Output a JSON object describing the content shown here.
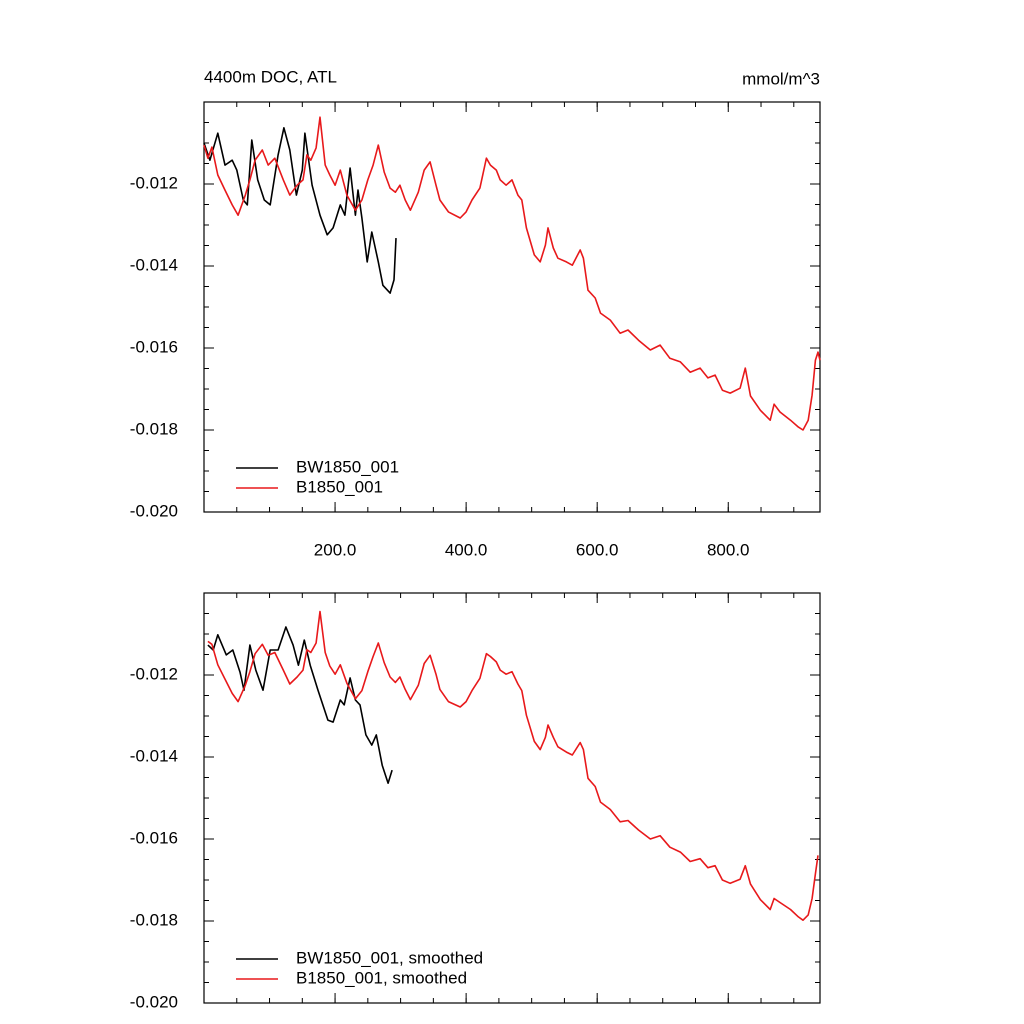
{
  "chart_data": [
    {
      "type": "line",
      "title": "4400m DOC, ATL",
      "units": "mmol/m^3",
      "xlim": [
        0,
        940
      ],
      "ylim": [
        -0.02,
        -0.01
      ],
      "xticks": [
        {
          "value": 200,
          "label": "200.0"
        },
        {
          "value": 400,
          "label": "400.0"
        },
        {
          "value": 600,
          "label": "600.0"
        },
        {
          "value": 800,
          "label": "800.0"
        }
      ],
      "yticks": [
        {
          "value": -0.02,
          "label": "-0.020"
        },
        -0.018,
        -0.016,
        -0.014,
        -0.012
      ],
      "legend": "lower left",
      "series": [
        {
          "name": "BW1850_001",
          "color": "#000000",
          "x": [
            0,
            9,
            21,
            32,
            43,
            50,
            60,
            66,
            73,
            82,
            92,
            101,
            113,
            122,
            131,
            141,
            150,
            154,
            165,
            177,
            188,
            197,
            208,
            215,
            223,
            231,
            235,
            241,
            249,
            256,
            266,
            273,
            284,
            290,
            293
          ],
          "values": [
            -0.011,
            -0.01142,
            -0.01076,
            -0.01154,
            -0.01142,
            -0.01166,
            -0.01239,
            -0.01251,
            -0.01093,
            -0.0119,
            -0.01239,
            -0.01251,
            -0.01129,
            -0.01063,
            -0.01117,
            -0.01227,
            -0.01166,
            -0.01076,
            -0.01203,
            -0.01276,
            -0.01324,
            -0.01307,
            -0.01251,
            -0.01276,
            -0.01161,
            -0.01276,
            -0.01215,
            -0.01283,
            -0.0139,
            -0.01317,
            -0.0139,
            -0.01447,
            -0.01466,
            -0.01434,
            -0.01332
          ]
        },
        {
          "name": "B1850_001",
          "color": "#e8191b",
          "x": [
            0,
            6,
            12,
            21,
            32,
            43,
            52,
            63,
            70,
            78,
            89,
            98,
            108,
            121,
            131,
            142,
            151,
            157,
            163,
            171,
            177,
            185,
            192,
            200,
            208,
            218,
            231,
            241,
            250,
            258,
            266,
            275,
            284,
            292,
            299,
            307,
            315,
            327,
            336,
            345,
            354,
            360,
            373,
            391,
            400,
            409,
            421,
            431,
            437,
            446,
            452,
            461,
            470,
            479,
            485,
            492,
            504,
            513,
            521,
            525,
            533,
            540,
            553,
            562,
            574,
            579,
            586,
            597,
            605,
            620,
            635,
            647,
            663,
            681,
            696,
            711,
            727,
            742,
            757,
            769,
            780,
            791,
            803,
            818,
            826,
            834,
            849,
            864,
            870,
            879,
            895,
            907,
            914,
            922,
            928,
            933,
            937,
            940
          ],
          "values": [
            -0.01105,
            -0.01137,
            -0.0111,
            -0.01178,
            -0.01215,
            -0.01251,
            -0.01276,
            -0.01227,
            -0.0119,
            -0.01142,
            -0.01117,
            -0.01154,
            -0.01137,
            -0.0119,
            -0.01227,
            -0.01203,
            -0.0119,
            -0.01129,
            -0.01142,
            -0.01112,
            -0.01037,
            -0.01154,
            -0.01178,
            -0.01203,
            -0.01166,
            -0.01227,
            -0.01264,
            -0.01239,
            -0.0119,
            -0.01154,
            -0.01105,
            -0.01171,
            -0.0121,
            -0.0122,
            -0.01203,
            -0.01239,
            -0.01264,
            -0.0122,
            -0.01166,
            -0.01146,
            -0.01203,
            -0.01239,
            -0.01268,
            -0.01283,
            -0.01268,
            -0.01239,
            -0.0121,
            -0.01137,
            -0.01154,
            -0.01166,
            -0.0119,
            -0.01203,
            -0.0119,
            -0.01227,
            -0.01239,
            -0.01307,
            -0.01373,
            -0.0139,
            -0.01349,
            -0.01307,
            -0.01356,
            -0.01381,
            -0.0139,
            -0.01398,
            -0.01361,
            -0.01381,
            -0.01459,
            -0.01478,
            -0.01515,
            -0.01532,
            -0.01564,
            -0.01556,
            -0.01581,
            -0.01605,
            -0.01593,
            -0.01625,
            -0.01634,
            -0.01659,
            -0.01649,
            -0.01673,
            -0.01666,
            -0.01703,
            -0.0171,
            -0.01698,
            -0.01649,
            -0.01717,
            -0.01752,
            -0.01776,
            -0.01737,
            -0.01756,
            -0.01776,
            -0.01793,
            -0.018,
            -0.01776,
            -0.01715,
            -0.0163,
            -0.0161,
            -0.0163
          ]
        }
      ]
    },
    {
      "type": "line",
      "xlim": [
        0,
        940
      ],
      "ylim": [
        -0.02,
        -0.01
      ],
      "xticks": [
        200,
        400,
        600,
        800
      ],
      "xtick_labels": false,
      "yticks": [
        {
          "value": -0.02,
          "label": "-0.020"
        },
        -0.018,
        -0.016,
        -0.014,
        -0.012
      ],
      "legend": "lower left",
      "series": [
        {
          "name": "BW1850_001, smoothed",
          "color": "#000000",
          "x": [
            6,
            14,
            21,
            34,
            44,
            55,
            61,
            70,
            79,
            90,
            101,
            113,
            125,
            136,
            144,
            153,
            162,
            174,
            189,
            197,
            208,
            214,
            223,
            231,
            238,
            247,
            256,
            263,
            272,
            281,
            287
          ],
          "values": [
            -0.01127,
            -0.01139,
            -0.01102,
            -0.01151,
            -0.01139,
            -0.01193,
            -0.01237,
            -0.01127,
            -0.01188,
            -0.01237,
            -0.01139,
            -0.01139,
            -0.01083,
            -0.01127,
            -0.01176,
            -0.01115,
            -0.01176,
            -0.01237,
            -0.0131,
            -0.01315,
            -0.01261,
            -0.01273,
            -0.01207,
            -0.01261,
            -0.01273,
            -0.01346,
            -0.01371,
            -0.01346,
            -0.0142,
            -0.01464,
            -0.01432
          ]
        },
        {
          "name": "B1850_001, smoothed",
          "color": "#e8191b",
          "x": [
            6,
            12,
            21,
            32,
            43,
            52,
            63,
            70,
            78,
            89,
            98,
            108,
            121,
            131,
            142,
            151,
            157,
            163,
            171,
            177,
            185,
            192,
            200,
            208,
            218,
            231,
            241,
            250,
            258,
            266,
            275,
            284,
            292,
            299,
            307,
            315,
            327,
            336,
            345,
            354,
            360,
            373,
            391,
            400,
            409,
            421,
            431,
            437,
            446,
            452,
            461,
            470,
            479,
            485,
            492,
            504,
            513,
            521,
            525,
            533,
            540,
            553,
            562,
            574,
            579,
            586,
            597,
            605,
            620,
            635,
            647,
            663,
            681,
            696,
            711,
            727,
            742,
            757,
            769,
            780,
            791,
            803,
            818,
            826,
            834,
            849,
            864,
            870,
            879,
            895,
            907,
            914,
            922,
            928,
            933,
            937
          ],
          "values": [
            -0.01118,
            -0.01125,
            -0.01175,
            -0.0121,
            -0.01245,
            -0.01265,
            -0.01225,
            -0.01192,
            -0.01148,
            -0.01125,
            -0.01152,
            -0.01145,
            -0.01188,
            -0.01222,
            -0.01205,
            -0.01188,
            -0.01138,
            -0.01145,
            -0.01122,
            -0.01045,
            -0.01145,
            -0.01178,
            -0.01198,
            -0.01175,
            -0.0122,
            -0.01258,
            -0.01238,
            -0.01192,
            -0.01155,
            -0.01122,
            -0.0117,
            -0.01205,
            -0.01218,
            -0.01205,
            -0.01235,
            -0.0126,
            -0.01225,
            -0.01172,
            -0.01152,
            -0.01198,
            -0.01235,
            -0.01265,
            -0.01278,
            -0.01265,
            -0.01238,
            -0.01208,
            -0.01148,
            -0.01155,
            -0.01168,
            -0.01188,
            -0.01198,
            -0.01192,
            -0.01222,
            -0.01238,
            -0.01298,
            -0.01362,
            -0.01382,
            -0.01352,
            -0.01322,
            -0.01352,
            -0.01375,
            -0.01388,
            -0.01395,
            -0.01365,
            -0.01382,
            -0.01452,
            -0.01472,
            -0.0151,
            -0.01528,
            -0.01558,
            -0.01555,
            -0.01578,
            -0.016,
            -0.01592,
            -0.0162,
            -0.01632,
            -0.01655,
            -0.01648,
            -0.0167,
            -0.01665,
            -0.017,
            -0.01708,
            -0.01698,
            -0.01665,
            -0.0171,
            -0.01748,
            -0.01772,
            -0.01745,
            -0.01755,
            -0.01772,
            -0.0179,
            -0.01798,
            -0.01785,
            -0.01745,
            -0.01685,
            -0.0164
          ]
        }
      ]
    }
  ]
}
